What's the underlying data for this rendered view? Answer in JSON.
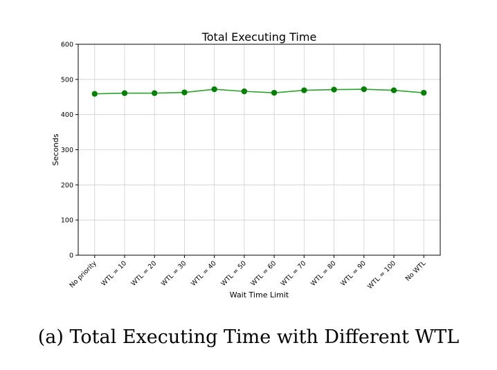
{
  "chart_data": {
    "type": "line",
    "title": "Total Executing Time",
    "xlabel": "Wait Time Limit",
    "ylabel": "Seconds",
    "categories": [
      "No priority",
      "WTL = 10",
      "WTL = 20",
      "WTL = 30",
      "WTL = 40",
      "WTL = 50",
      "WTL = 60",
      "WTL = 70",
      "WTL = 80",
      "WTL = 90",
      "WTL = 100",
      "No WTL"
    ],
    "values": [
      459,
      461,
      461,
      463,
      472,
      466,
      462,
      469,
      471,
      472,
      469,
      462
    ],
    "ylim": [
      0,
      600
    ],
    "yticks": [
      0,
      100,
      200,
      300,
      400,
      500,
      600
    ],
    "grid": true,
    "colors": {
      "line": "#2ca02c",
      "marker": "#008000",
      "grid": "#cfcfcf"
    }
  },
  "caption": "(a) Total Executing Time with Different WTL"
}
